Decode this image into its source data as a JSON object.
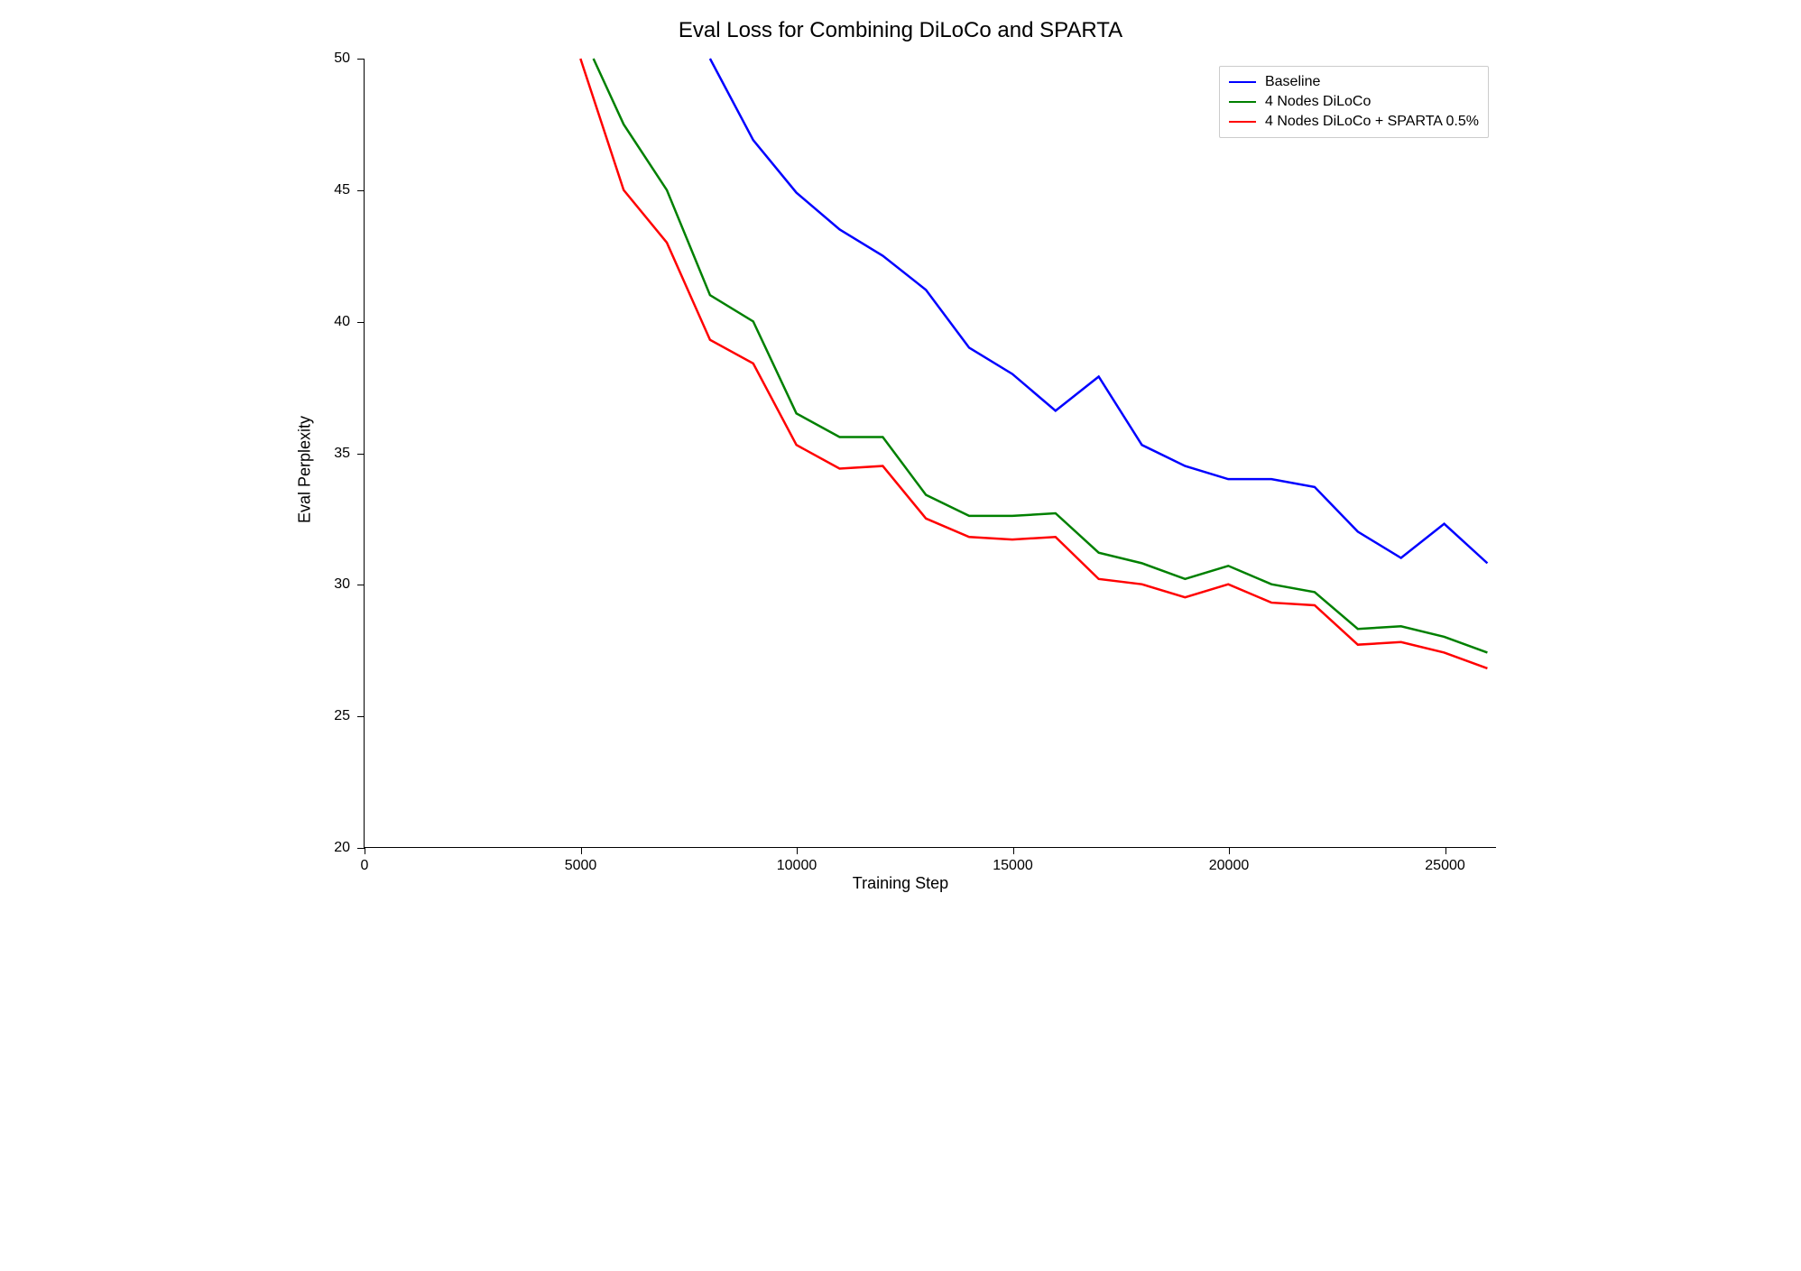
{
  "chart": {
    "type": "line",
    "title": "Eval Loss for Combining DiLoCo and SPARTA",
    "title_fontsize": 24,
    "xlabel": "Training Step",
    "ylabel": "Eval Perplexity",
    "label_fontsize": 18,
    "tick_fontsize": 16,
    "xlim": [
      0,
      26200
    ],
    "ylim": [
      20,
      50
    ],
    "xticks": [
      0,
      5000,
      10000,
      15000,
      20000,
      25000
    ],
    "yticks": [
      20,
      25,
      30,
      35,
      40,
      45,
      50
    ],
    "background_color": "#ffffff",
    "axis_color": "#000000",
    "line_width": 2.5,
    "legend": {
      "position": "upper-right",
      "border_color": "#cccccc",
      "background_color": "#ffffff",
      "items": [
        {
          "label": "Baseline",
          "color": "#0000ff"
        },
        {
          "label": "4 Nodes DiLoCo",
          "color": "#008000"
        },
        {
          "label": "4 Nodes DiLoCo + SPARTA 0.5%",
          "color": "#ff0000"
        }
      ]
    },
    "series": [
      {
        "name": "Baseline",
        "color": "#0000ff",
        "x": [
          8000,
          9000,
          10000,
          11000,
          12000,
          13000,
          14000,
          15000,
          16000,
          17000,
          18000,
          19000,
          20000,
          21000,
          22000,
          23000,
          24000,
          25000,
          26000
        ],
        "y": [
          50.0,
          46.9,
          44.9,
          43.5,
          42.5,
          41.2,
          39.0,
          38.0,
          36.6,
          37.9,
          35.3,
          34.5,
          34.0,
          34.0,
          33.7,
          32.0,
          31.0,
          32.3,
          30.8
        ]
      },
      {
        "name": "4 Nodes DiLoCo",
        "color": "#008000",
        "x": [
          5300,
          6000,
          7000,
          8000,
          9000,
          10000,
          11000,
          12000,
          13000,
          14000,
          15000,
          16000,
          17000,
          18000,
          19000,
          20000,
          21000,
          22000,
          23000,
          24000,
          25000,
          26000
        ],
        "y": [
          50.0,
          47.5,
          45.0,
          41.0,
          40.0,
          36.5,
          35.6,
          35.6,
          33.4,
          32.6,
          32.6,
          32.7,
          31.2,
          30.8,
          30.2,
          30.7,
          30.0,
          29.7,
          28.3,
          28.4,
          28.0,
          27.4
        ]
      },
      {
        "name": "4 Nodes DiLoCo + SPARTA 0.5%",
        "color": "#ff0000",
        "x": [
          5000,
          6000,
          7000,
          8000,
          9000,
          10000,
          11000,
          12000,
          13000,
          14000,
          15000,
          16000,
          17000,
          18000,
          19000,
          20000,
          21000,
          22000,
          23000,
          24000,
          25000,
          26000
        ],
        "y": [
          50.0,
          45.0,
          43.0,
          39.3,
          38.4,
          35.3,
          34.4,
          34.5,
          32.5,
          31.8,
          31.7,
          31.8,
          30.2,
          30.0,
          29.5,
          30.0,
          29.3,
          29.2,
          27.7,
          27.8,
          27.4,
          26.8
        ]
      }
    ]
  }
}
